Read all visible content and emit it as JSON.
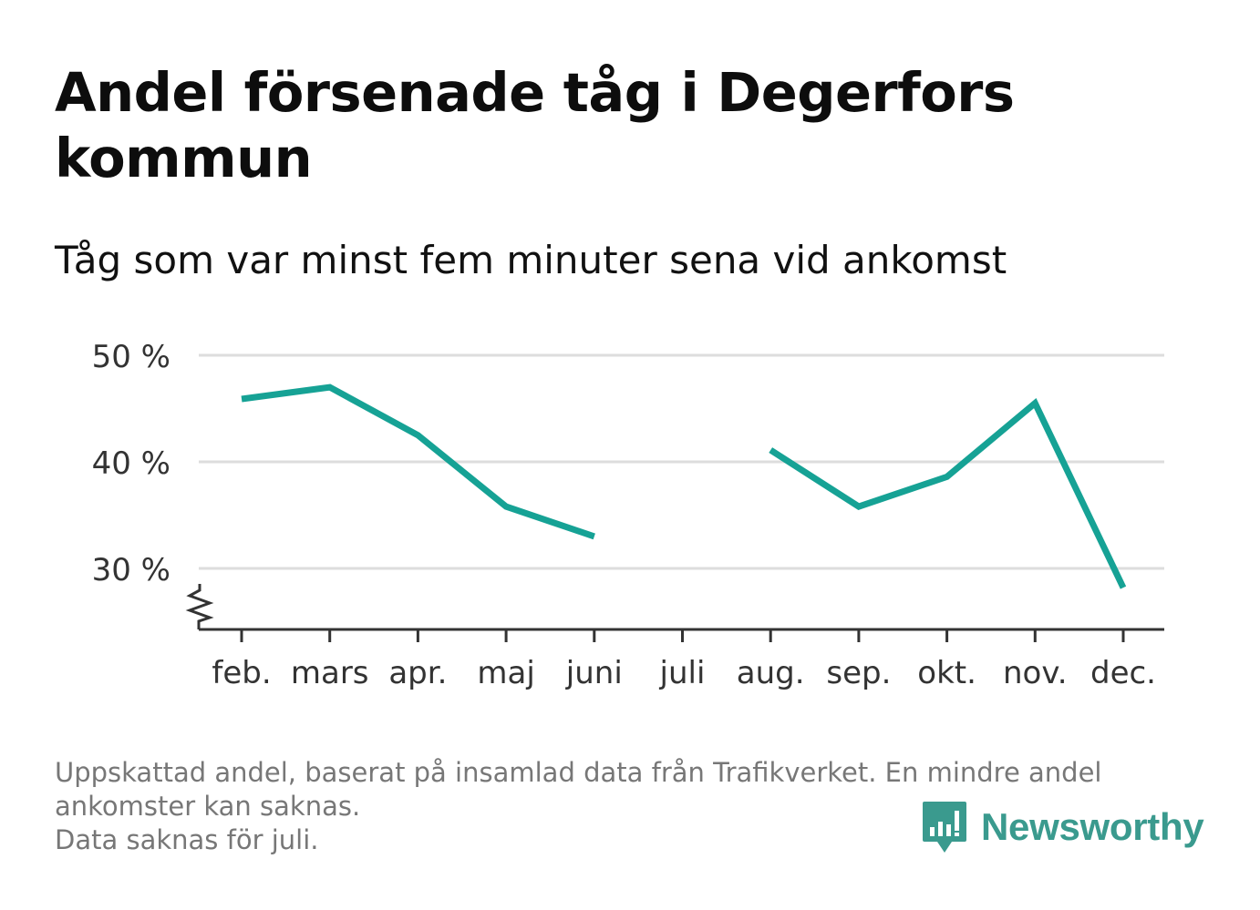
{
  "title": "Andel försenade tåg i Degerfors kommun",
  "subtitle": "Tåg som var minst fem minuter sena vid ankomst",
  "chart_data": {
    "type": "line",
    "categories": [
      "feb.",
      "mars",
      "apr.",
      "maj",
      "juni",
      "juli",
      "aug.",
      "sep.",
      "okt.",
      "nov.",
      "dec."
    ],
    "series": [
      {
        "values": [
          45.9,
          47.0,
          42.5,
          35.8,
          33.0,
          null,
          41.1,
          35.8,
          38.6,
          45.5,
          28.2
        ]
      }
    ],
    "yticks": [
      30,
      40,
      50
    ],
    "ytick_labels": [
      "30 %",
      "40 %",
      "50 %"
    ],
    "ylim": [
      24.3,
      50
    ],
    "axis_break": true,
    "grid": true,
    "line_color": "#16a295"
  },
  "footnote": {
    "lines": [
      "Uppskattad andel, baserat på insamlad data från Trafikverket. En mindre andel",
      "ankomster kan saknas.",
      "Data saknas för juli."
    ]
  },
  "logo": {
    "text": "Newsworthy",
    "color": "#3a9a8e"
  }
}
